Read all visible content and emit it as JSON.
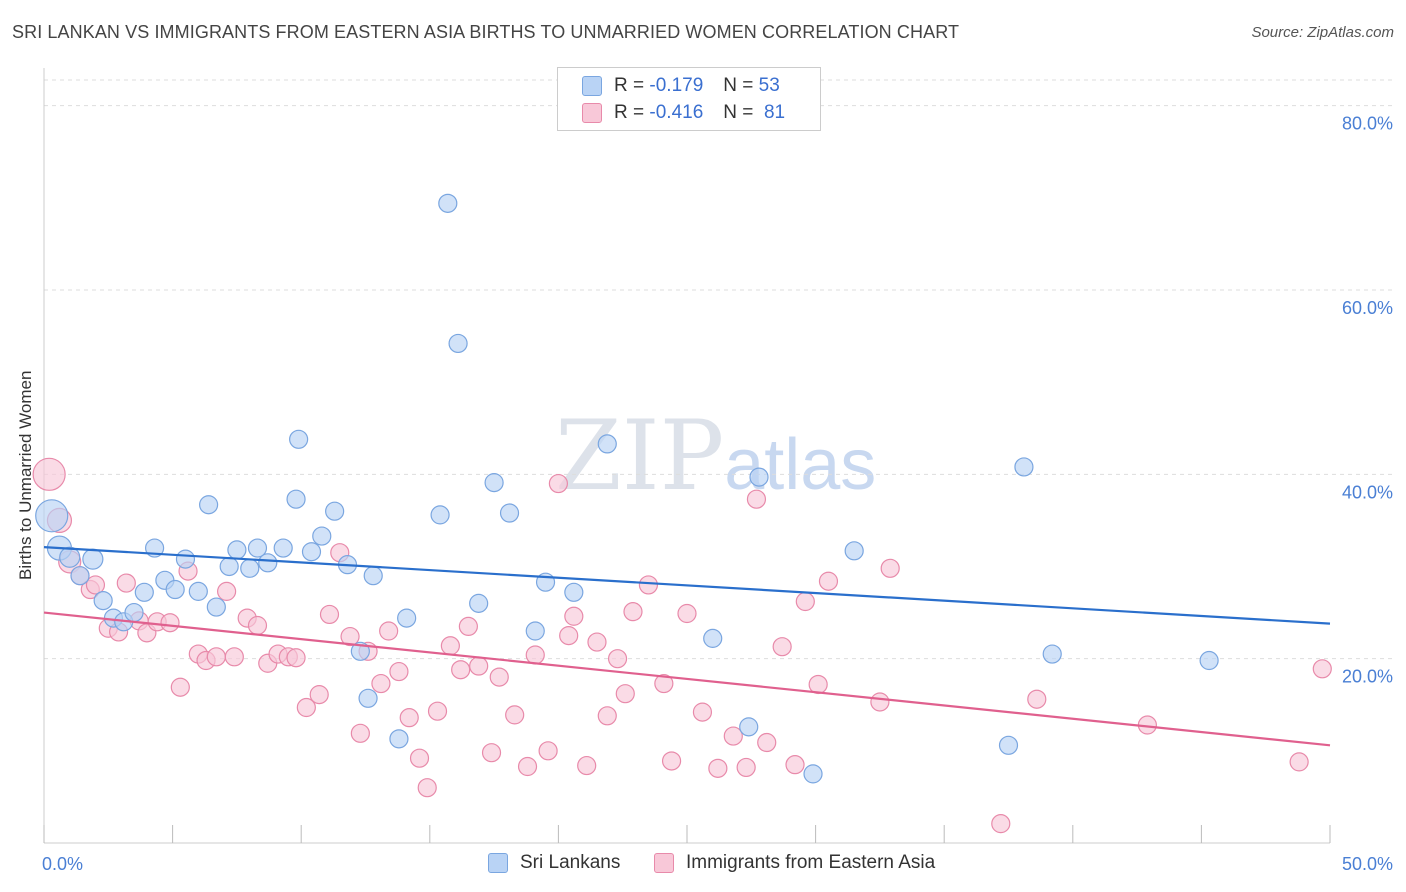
{
  "header": {
    "title": "SRI LANKAN VS IMMIGRANTS FROM EASTERN ASIA BIRTHS TO UNMARRIED WOMEN CORRELATION CHART",
    "source": "Source: ZipAtlas.com"
  },
  "watermark": {
    "zip": "ZIP",
    "atlas": "atlas"
  },
  "legend_top": {
    "rows": [
      {
        "r_label": "R = ",
        "r_value": "-0.179",
        "n_label": "N = ",
        "n_value": "53"
      },
      {
        "r_label": "R = ",
        "r_value": "-0.416",
        "n_label": "N = ",
        "n_value": "81"
      }
    ]
  },
  "colors": {
    "series1_fill": "#b9d3f5",
    "series1_stroke": "#7aa6e0",
    "series1_line": "#2a6fcc",
    "series2_fill": "#f8c8d8",
    "series2_stroke": "#e88aaa",
    "series2_line": "#e0608e",
    "tick": "#4a7fd4"
  },
  "chart_data": {
    "type": "scatter",
    "xlabel": "",
    "ylabel": "Births to Unmarried Women",
    "xlim": [
      0,
      50
    ],
    "ylim": [
      0,
      83
    ],
    "x_tick_labels": [
      {
        "value": 0,
        "label": "0.0%"
      },
      {
        "value": 50,
        "label": "50.0%"
      }
    ],
    "y_tick_labels": [
      {
        "value": 20,
        "label": "20.0%"
      },
      {
        "value": 40,
        "label": "40.0%"
      },
      {
        "value": 60,
        "label": "60.0%"
      },
      {
        "value": 80,
        "label": "80.0%"
      }
    ],
    "grid": true,
    "legend_position": "bottom",
    "series": [
      {
        "name": "Sri Lankans",
        "trend": {
          "x": [
            0,
            50
          ],
          "y": [
            32.1,
            23.8
          ]
        },
        "points": [
          [
            0.3,
            35.5,
            16
          ],
          [
            0.6,
            32.0,
            12
          ],
          [
            1.0,
            31.0,
            10
          ],
          [
            1.4,
            29.0,
            9
          ],
          [
            1.9,
            30.8,
            10
          ],
          [
            2.3,
            26.3,
            9
          ],
          [
            2.7,
            24.4,
            9
          ],
          [
            3.1,
            24.0,
            9
          ],
          [
            3.5,
            25.0,
            9
          ],
          [
            3.9,
            27.2,
            9
          ],
          [
            4.3,
            32.0,
            9
          ],
          [
            4.7,
            28.5,
            9
          ],
          [
            5.1,
            27.5,
            9
          ],
          [
            5.5,
            30.8,
            9
          ],
          [
            6.0,
            27.3,
            9
          ],
          [
            6.4,
            36.7,
            9
          ],
          [
            6.7,
            25.6,
            9
          ],
          [
            7.2,
            30.0,
            9
          ],
          [
            7.5,
            31.8,
            9
          ],
          [
            8.0,
            29.8,
            9
          ],
          [
            8.3,
            32.0,
            9
          ],
          [
            8.7,
            30.4,
            9
          ],
          [
            9.3,
            32.0,
            9
          ],
          [
            9.8,
            37.3,
            9
          ],
          [
            9.9,
            43.8,
            9
          ],
          [
            10.4,
            31.6,
            9
          ],
          [
            10.8,
            33.3,
            9
          ],
          [
            11.3,
            36.0,
            9
          ],
          [
            11.8,
            30.2,
            9
          ],
          [
            12.3,
            20.8,
            9
          ],
          [
            12.6,
            15.7,
            9
          ],
          [
            12.8,
            29.0,
            9
          ],
          [
            13.8,
            11.3,
            9
          ],
          [
            14.1,
            24.4,
            9
          ],
          [
            15.4,
            35.6,
            9
          ],
          [
            15.7,
            69.4,
            9
          ],
          [
            16.1,
            54.2,
            9
          ],
          [
            16.9,
            26.0,
            9
          ],
          [
            17.5,
            39.1,
            9
          ],
          [
            18.1,
            35.8,
            9
          ],
          [
            19.1,
            23.0,
            9
          ],
          [
            19.5,
            28.3,
            9
          ],
          [
            20.6,
            27.2,
            9
          ],
          [
            21.9,
            43.3,
            9
          ],
          [
            26.0,
            22.2,
            9
          ],
          [
            27.4,
            12.6,
            9
          ],
          [
            27.8,
            39.7,
            9
          ],
          [
            29.9,
            7.5,
            9
          ],
          [
            31.5,
            31.7,
            9
          ],
          [
            37.5,
            10.6,
            9
          ],
          [
            38.1,
            40.8,
            9
          ],
          [
            39.2,
            20.5,
            9
          ],
          [
            45.3,
            19.8,
            9
          ]
        ]
      },
      {
        "name": "Immigrants from Eastern Asia",
        "trend": {
          "x": [
            0,
            50
          ],
          "y": [
            25.0,
            10.6
          ]
        },
        "points": [
          [
            0.2,
            40.0,
            16
          ],
          [
            0.6,
            35.0,
            12
          ],
          [
            1.0,
            30.5,
            11
          ],
          [
            1.4,
            29.0,
            9
          ],
          [
            1.8,
            27.5,
            9
          ],
          [
            2.0,
            28.0,
            9
          ],
          [
            2.5,
            23.3,
            9
          ],
          [
            2.9,
            22.9,
            9
          ],
          [
            3.2,
            28.2,
            9
          ],
          [
            3.7,
            24.1,
            9
          ],
          [
            4.0,
            22.8,
            9
          ],
          [
            4.4,
            24.0,
            9
          ],
          [
            4.9,
            23.9,
            9
          ],
          [
            5.3,
            16.9,
            9
          ],
          [
            5.6,
            29.5,
            9
          ],
          [
            6.0,
            20.5,
            9
          ],
          [
            6.3,
            19.8,
            9
          ],
          [
            6.7,
            20.2,
            9
          ],
          [
            7.1,
            27.3,
            9
          ],
          [
            7.4,
            20.2,
            9
          ],
          [
            7.9,
            24.4,
            9
          ],
          [
            8.3,
            23.6,
            9
          ],
          [
            8.7,
            19.5,
            9
          ],
          [
            9.1,
            20.5,
            9
          ],
          [
            9.5,
            20.2,
            9
          ],
          [
            9.8,
            20.1,
            9
          ],
          [
            10.2,
            14.7,
            9
          ],
          [
            10.7,
            16.1,
            9
          ],
          [
            11.1,
            24.8,
            9
          ],
          [
            11.5,
            31.5,
            9
          ],
          [
            11.9,
            22.4,
            9
          ],
          [
            12.3,
            11.9,
            9
          ],
          [
            12.6,
            20.8,
            9
          ],
          [
            13.1,
            17.3,
            9
          ],
          [
            13.4,
            23.0,
            9
          ],
          [
            13.8,
            18.6,
            9
          ],
          [
            14.2,
            13.6,
            9
          ],
          [
            14.6,
            9.2,
            9
          ],
          [
            14.9,
            6.0,
            9
          ],
          [
            15.3,
            14.3,
            9
          ],
          [
            15.8,
            21.4,
            9
          ],
          [
            16.2,
            18.8,
            9
          ],
          [
            16.5,
            23.5,
            9
          ],
          [
            16.9,
            19.2,
            9
          ],
          [
            17.4,
            9.8,
            9
          ],
          [
            17.7,
            18.0,
            9
          ],
          [
            18.3,
            13.9,
            9
          ],
          [
            18.8,
            8.3,
            9
          ],
          [
            19.1,
            20.4,
            9
          ],
          [
            19.6,
            10.0,
            9
          ],
          [
            20.0,
            39.0,
            9
          ],
          [
            20.4,
            22.5,
            9
          ],
          [
            20.6,
            24.6,
            9
          ],
          [
            21.1,
            8.4,
            9
          ],
          [
            21.5,
            21.8,
            9
          ],
          [
            21.9,
            13.8,
            9
          ],
          [
            22.3,
            20.0,
            9
          ],
          [
            22.6,
            16.2,
            9
          ],
          [
            22.9,
            25.1,
            9
          ],
          [
            23.5,
            28.0,
            9
          ],
          [
            24.1,
            17.3,
            9
          ],
          [
            24.4,
            8.9,
            9
          ],
          [
            25.0,
            24.9,
            9
          ],
          [
            25.6,
            14.2,
            9
          ],
          [
            26.2,
            8.1,
            9
          ],
          [
            26.8,
            11.6,
            9
          ],
          [
            27.3,
            8.2,
            9
          ],
          [
            27.7,
            37.3,
            9
          ],
          [
            28.1,
            10.9,
            9
          ],
          [
            28.7,
            21.3,
            9
          ],
          [
            29.2,
            8.5,
            9
          ],
          [
            29.6,
            26.2,
            9
          ],
          [
            30.1,
            17.2,
            9
          ],
          [
            30.5,
            28.4,
            9
          ],
          [
            32.5,
            15.3,
            9
          ],
          [
            32.9,
            29.8,
            9
          ],
          [
            37.2,
            2.1,
            9
          ],
          [
            38.6,
            15.6,
            9
          ],
          [
            42.9,
            12.8,
            9
          ],
          [
            48.8,
            8.8,
            9
          ],
          [
            49.7,
            18.9,
            9
          ]
        ]
      }
    ]
  },
  "bottom_legend": {
    "items": [
      "Sri Lankans",
      "Immigrants from Eastern Asia"
    ]
  }
}
